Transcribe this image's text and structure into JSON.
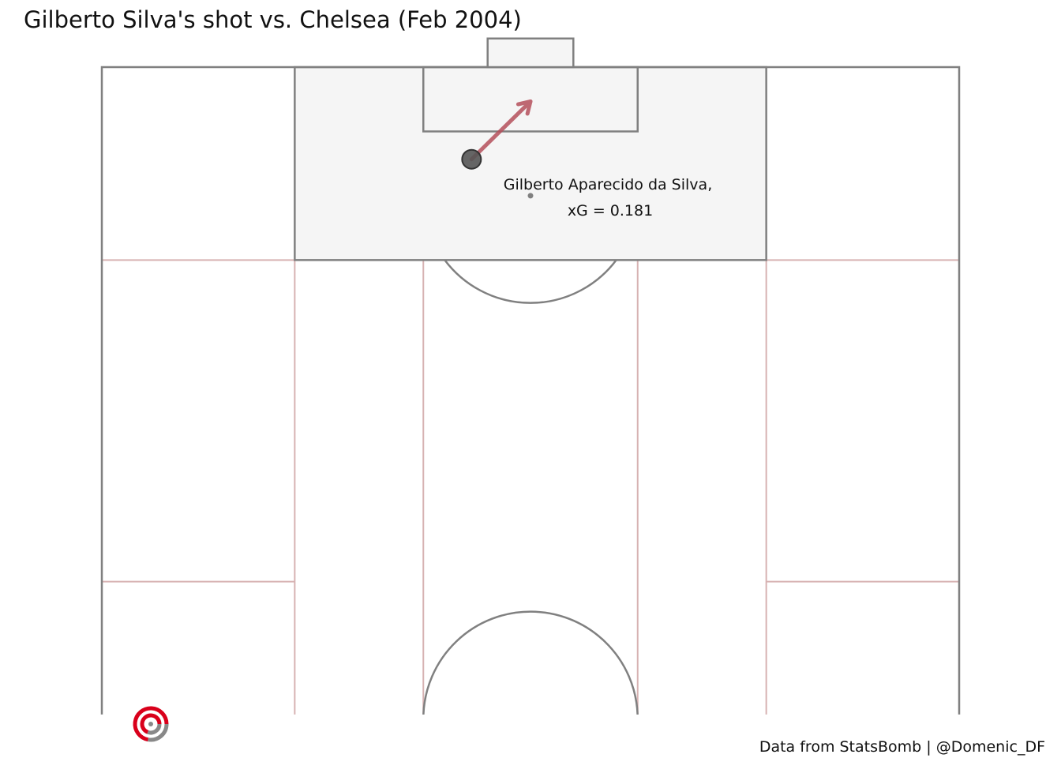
{
  "title": "Gilberto Silva's shot vs. Chelsea (Feb 2004)",
  "credits": {
    "source": "Data from StatsBomb |",
    "author": "@Domenic_DF"
  },
  "logo": {
    "name": "statsbomb-logo",
    "colors": [
      "#d9001b",
      "#888888"
    ]
  },
  "chart_data": {
    "type": "scatter",
    "pitch": {
      "view": "vertical-half",
      "length": 120,
      "width": 80,
      "visible_x_range": [
        59.6,
        120
      ],
      "line_color": "#808080",
      "grid_color": "#d7b2b2",
      "box_fill": "#f5f5f5"
    },
    "shots": [
      {
        "player": "Gilberto Aparecido da Silva",
        "label_line1": "Gilberto Aparecido da Silva,",
        "label_line2": "xG = 0.181",
        "xg": 0.181,
        "location": [
          111.4,
          34.5
        ],
        "end_location": [
          116.8,
          40.0
        ],
        "marker_color": "#555555",
        "arrow_color": "#b5505c"
      }
    ],
    "penalty_spot": [
      108,
      40
    ]
  }
}
